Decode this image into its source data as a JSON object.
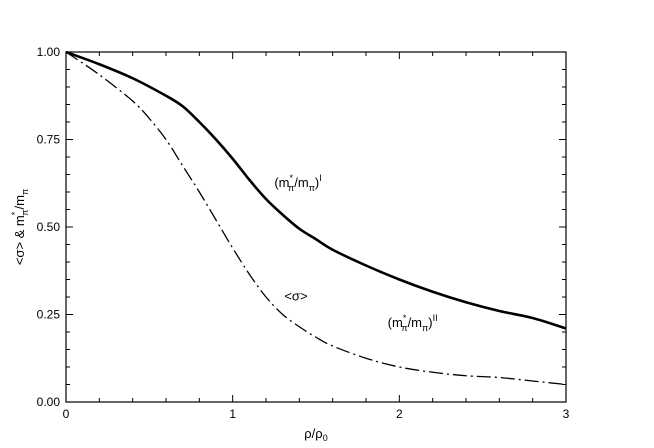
{
  "chart_data": {
    "type": "line",
    "title": "",
    "xlabel": "ρ/ρ",
    "xlabel_sub": "0",
    "ylabel": "<σ> & m",
    "ylabel_sup": "*",
    "ylabel_mid": "π",
    "ylabel_tail": "/m",
    "ylabel_tail_sub": "π",
    "xlim": [
      0,
      3
    ],
    "ylim": [
      0,
      1
    ],
    "x_ticks": [
      0,
      1,
      2,
      3
    ],
    "x_tick_labels": [
      "0",
      "1",
      "2",
      "3"
    ],
    "y_ticks": [
      0,
      0.25,
      0.5,
      0.75,
      1.0
    ],
    "y_tick_labels": [
      "0.00",
      "0.25",
      "0.50",
      "0.75",
      "1.00"
    ],
    "grid": false,
    "legend": "none",
    "series": [
      {
        "style": "solid",
        "x": [
          0,
          0.2,
          0.4,
          0.6,
          0.7,
          0.8,
          0.9,
          1.0,
          1.1,
          1.2,
          1.3,
          1.4,
          1.5,
          1.6,
          1.8,
          2.0,
          2.2,
          2.4,
          2.6,
          2.8,
          3.0
        ],
        "y": [
          1.0,
          0.965,
          0.925,
          0.875,
          0.845,
          0.8,
          0.75,
          0.695,
          0.635,
          0.58,
          0.535,
          0.495,
          0.465,
          0.435,
          0.39,
          0.35,
          0.315,
          0.285,
          0.26,
          0.24,
          0.21
        ]
      },
      {
        "style": "dash-dot",
        "x": [
          0,
          0.2,
          0.4,
          0.5,
          0.6,
          0.7,
          0.8,
          0.9,
          1.0,
          1.1,
          1.2,
          1.3,
          1.4,
          1.5,
          1.6,
          1.8,
          2.0,
          2.2,
          2.4,
          2.6,
          2.8,
          3.0
        ],
        "y": [
          1.0,
          0.935,
          0.86,
          0.81,
          0.75,
          0.675,
          0.6,
          0.52,
          0.44,
          0.365,
          0.3,
          0.25,
          0.215,
          0.185,
          0.16,
          0.125,
          0.1,
          0.085,
          0.075,
          0.07,
          0.06,
          0.05
        ]
      }
    ],
    "annotations": [
      {
        "id": "mpi-1",
        "base": "(m",
        "sup": "*",
        "sub1": "π",
        "mid": "/m",
        "sub2": "π",
        "close": ")",
        "tail_sup": "I",
        "x": 1.25,
        "y": 0.615
      },
      {
        "id": "mpi-2",
        "base": "(m",
        "sup": "*",
        "sub1": "π",
        "mid": "/m",
        "sub2": "π",
        "close": ")",
        "tail_sup": "II",
        "x": 1.93,
        "y": 0.215
      },
      {
        "id": "sigma",
        "text": "<σ>",
        "x": 1.31,
        "y": 0.29
      }
    ]
  }
}
